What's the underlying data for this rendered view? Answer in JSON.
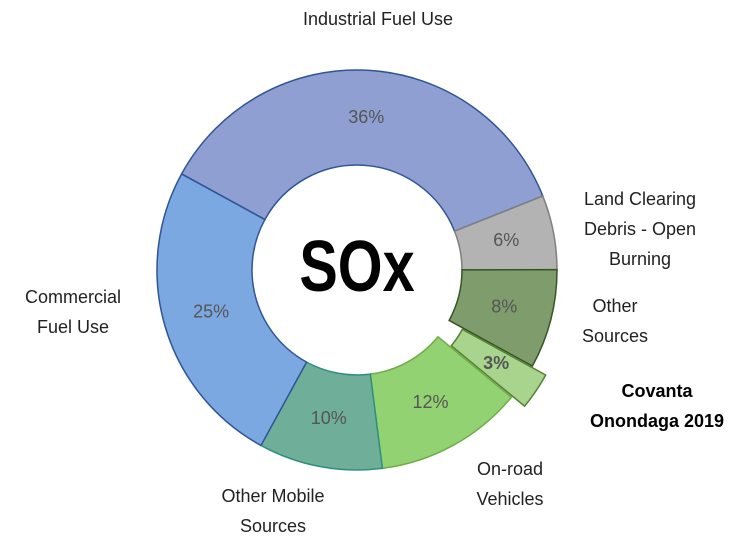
{
  "chart_data": {
    "type": "donut",
    "center_label": "SOx",
    "categories": [
      [
        "Industrial Fuel Use"
      ],
      [
        "Land Clearing",
        "Debris - Open",
        "Burning"
      ],
      [
        "Other",
        "Sources"
      ],
      [
        "Covanta",
        "Onondaga 2019"
      ],
      [
        "On-road",
        "Vehicles"
      ],
      [
        "Other Mobile",
        "Sources"
      ],
      [
        "Commercial",
        "Fuel Use"
      ]
    ],
    "values": [
      36,
      6,
      8,
      3,
      12,
      10,
      25
    ],
    "value_labels": [
      "36%",
      "6%",
      "8%",
      "3%",
      "12%",
      "10%",
      "25%"
    ],
    "colors": [
      "#8f9fd2",
      "#b3b3b3",
      "#7f9c6c",
      "#a9d48e",
      "#93d272",
      "#6fae98",
      "#7ca8e2"
    ],
    "edge_colors": [
      "#2f5597",
      "#7f7f7f",
      "#375623",
      "#548235",
      "#70ad47",
      "#2f8f7f",
      "#2f5597"
    ],
    "exploded": [
      false,
      false,
      false,
      true,
      false,
      false,
      false
    ]
  }
}
